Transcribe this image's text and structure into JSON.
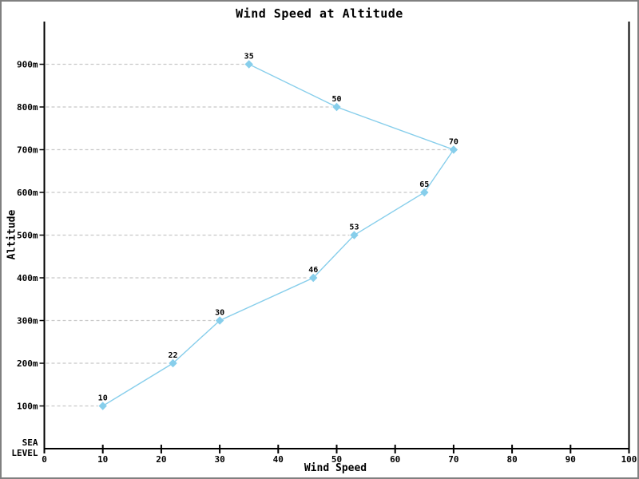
{
  "title": "Wind Speed at Altitude",
  "x_axis": {
    "label": "Wind Speed",
    "ticks": [
      0,
      10,
      20,
      30,
      40,
      50,
      60,
      70,
      80,
      90,
      100
    ]
  },
  "y_axis": {
    "label": "Altitude",
    "ticks": [
      {
        "value_m": 100,
        "label": "100m"
      },
      {
        "value_m": 200,
        "label": "200m"
      },
      {
        "value_m": 300,
        "label": "300m"
      },
      {
        "value_m": 400,
        "label": "400m"
      },
      {
        "value_m": 500,
        "label": "500m"
      },
      {
        "value_m": 600,
        "label": "600m"
      },
      {
        "value_m": 700,
        "label": "700m"
      },
      {
        "value_m": 800,
        "label": "800m"
      },
      {
        "value_m": 900,
        "label": "900m"
      }
    ],
    "zero_label_lines": [
      "SEA",
      "LEVEL"
    ]
  },
  "colors": {
    "line": "#87CEEB",
    "marker": "#87CEEB",
    "grid": "#c8c8c8",
    "text": "#000000",
    "axis": "#000000",
    "frame_border": "#808080",
    "background": "#ffffff"
  },
  "chart_data": {
    "type": "line",
    "title": "Wind Speed at Altitude",
    "xlabel": "Wind Speed",
    "ylabel": "Altitude",
    "xlim": [
      0,
      100
    ],
    "ylim_m": [
      0,
      1000
    ],
    "marker": "diamond",
    "grid": "dashed horizontal segments from y-axis to each data point",
    "legend": "none",
    "points": [
      {
        "altitude_m": 100,
        "wind_speed": 10,
        "label": "10"
      },
      {
        "altitude_m": 200,
        "wind_speed": 22,
        "label": "22"
      },
      {
        "altitude_m": 300,
        "wind_speed": 30,
        "label": "30"
      },
      {
        "altitude_m": 400,
        "wind_speed": 46,
        "label": "46"
      },
      {
        "altitude_m": 500,
        "wind_speed": 53,
        "label": "53"
      },
      {
        "altitude_m": 600,
        "wind_speed": 65,
        "label": "65"
      },
      {
        "altitude_m": 700,
        "wind_speed": 70,
        "label": "70"
      },
      {
        "altitude_m": 800,
        "wind_speed": 50,
        "label": "50"
      },
      {
        "altitude_m": 900,
        "wind_speed": 35,
        "label": "35"
      }
    ]
  }
}
